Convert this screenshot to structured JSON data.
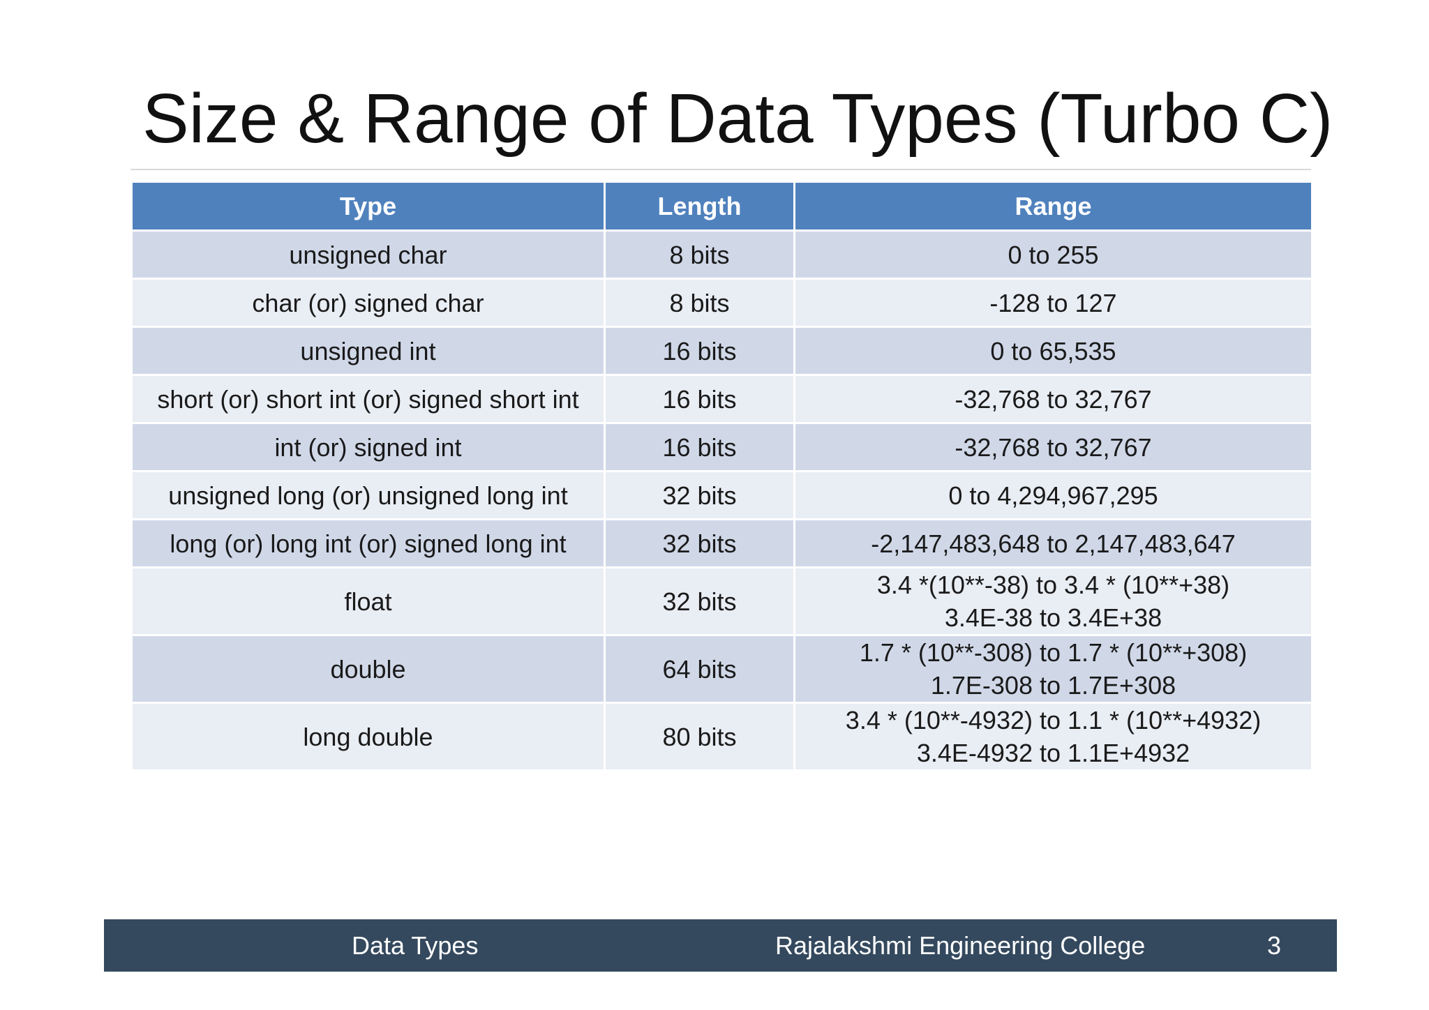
{
  "slide": {
    "title": "Size & Range of Data Types (Turbo C)"
  },
  "table": {
    "headers": {
      "type": "Type",
      "length": "Length",
      "range": "Range"
    },
    "rows": [
      {
        "type": "unsigned char",
        "length": "8 bits",
        "range": [
          "0 to 255"
        ]
      },
      {
        "type": "char (or) signed char",
        "length": "8 bits",
        "range": [
          "-128 to 127"
        ]
      },
      {
        "type": "unsigned int",
        "length": "16 bits",
        "range": [
          "0 to 65,535"
        ]
      },
      {
        "type": "short (or) short int (or) signed short int",
        "length": "16 bits",
        "range": [
          "-32,768 to 32,767"
        ]
      },
      {
        "type": "int (or) signed int",
        "length": "16 bits",
        "range": [
          "-32,768 to 32,767"
        ]
      },
      {
        "type": "unsigned long (or) unsigned long int",
        "length": "32 bits",
        "range": [
          "0 to 4,294,967,295"
        ]
      },
      {
        "type": "long (or) long int (or) signed long int",
        "length": "32 bits",
        "range": [
          "-2,147,483,648 to 2,147,483,647"
        ]
      },
      {
        "type": "float",
        "length": "32 bits",
        "range": [
          "3.4 *(10**-38) to 3.4 * (10**+38)",
          "3.4E-38 to 3.4E+38"
        ]
      },
      {
        "type": "double",
        "length": "64 bits",
        "range": [
          "1.7 * (10**-308) to 1.7 * (10**+308)",
          "1.7E-308 to 1.7E+308"
        ]
      },
      {
        "type": "long double",
        "length": "80 bits",
        "range": [
          "3.4 * (10**-4932) to 1.1 * (10**+4932)",
          "3.4E-4932 to 1.1E+4932"
        ]
      }
    ]
  },
  "footer": {
    "left": "Data Types",
    "center": "Rajalakshmi Engineering College",
    "page_number": "3"
  },
  "colors": {
    "header_fill": "#4f81bd",
    "row_dark": "#d0d8e8",
    "row_light": "#e9edf4",
    "footer_bar": "#34495e"
  }
}
